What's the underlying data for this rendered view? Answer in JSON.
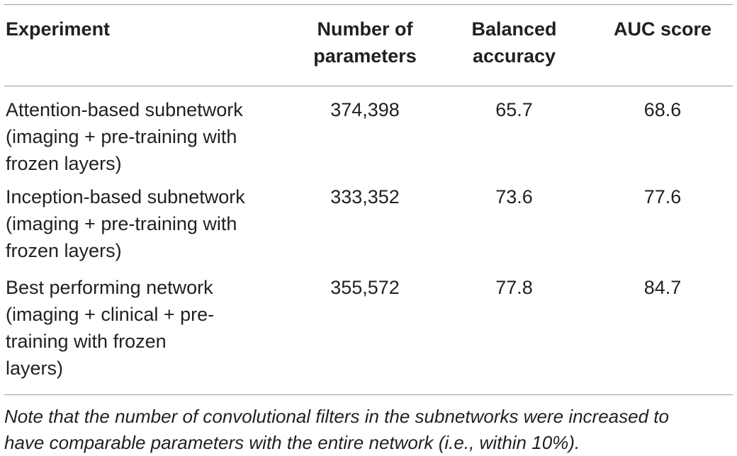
{
  "table": {
    "headers": {
      "experiment": "Experiment",
      "parameters": "Number of\nparameters",
      "balanced_accuracy": "Balanced\naccuracy",
      "auc": "AUC score"
    },
    "rows": [
      {
        "experiment": "Attention-based subnetwork\n(imaging + pre-training with\nfrozen layers)",
        "parameters": "374,398",
        "balanced_accuracy": "65.7",
        "auc": "68.6"
      },
      {
        "experiment": "Inception-based subnetwork\n(imaging + pre-training with\nfrozen layers)",
        "parameters": "333,352",
        "balanced_accuracy": "73.6",
        "auc": "77.6"
      },
      {
        "experiment": "Best performing network\n(imaging + clinical + pre-\ntraining with frozen\nlayers)",
        "parameters": "355,572",
        "balanced_accuracy": "77.8",
        "auc": "84.7"
      }
    ],
    "note": "Note that the number of convolutional filters in the subnetworks were increased to\nhave comparable parameters with the entire network (i.e., within 10%)."
  }
}
